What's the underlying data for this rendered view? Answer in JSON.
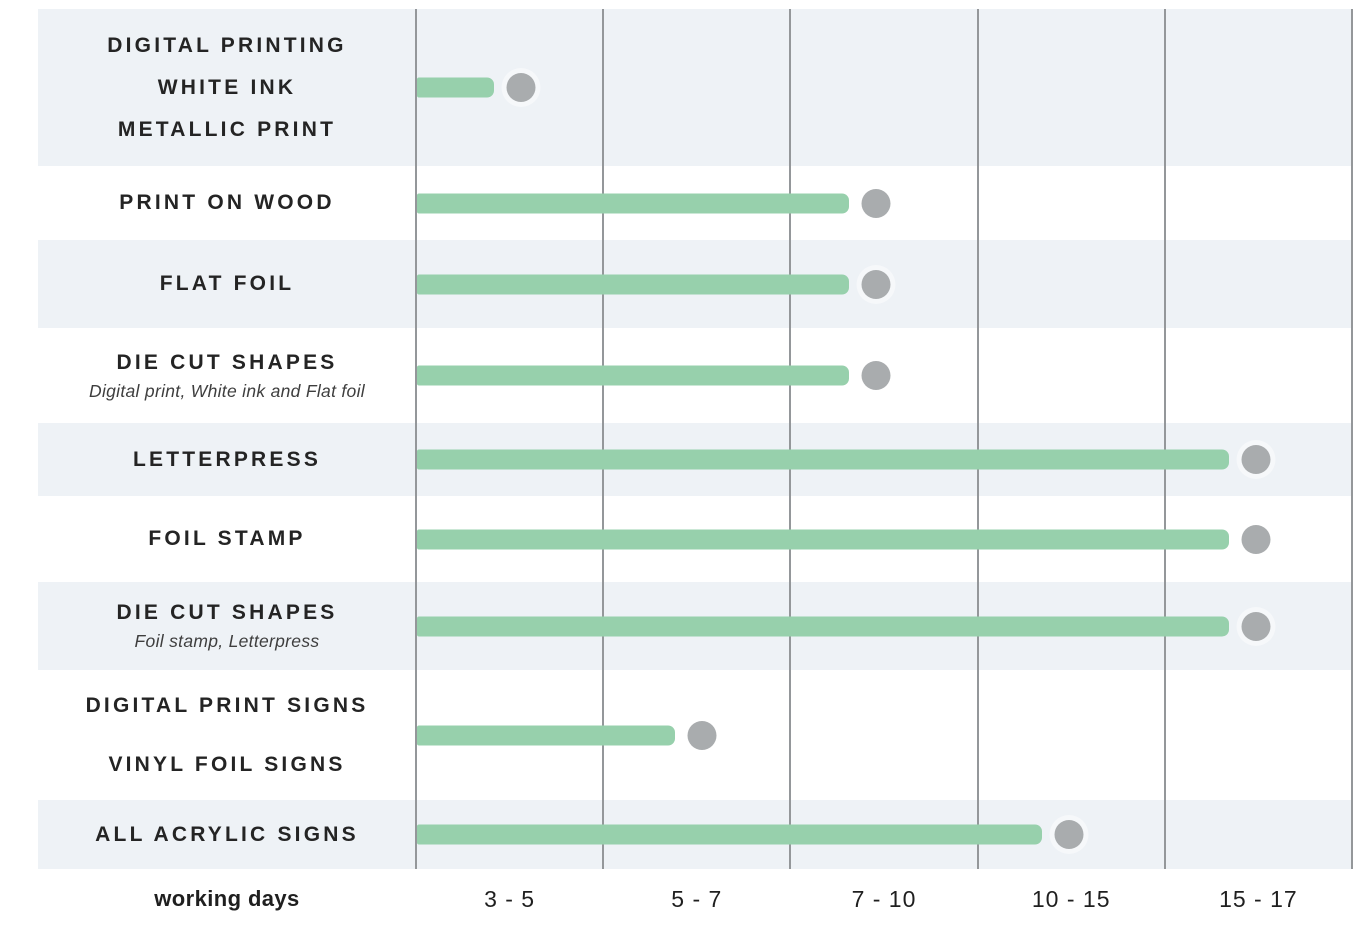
{
  "chart_data": {
    "type": "bar",
    "orientation": "horizontal",
    "xlabel": "working days",
    "columns": [
      "3 - 5",
      "5 - 7",
      "7 - 10",
      "10 - 15",
      "15 - 17"
    ],
    "axis_units_range": [
      0,
      5
    ],
    "grid": true,
    "rows": [
      {
        "labels": [
          "DIGITAL PRINTING",
          "WHITE INK",
          "METALLIC PRINT"
        ],
        "sublabel": "",
        "days": "3 - 5",
        "column": 1,
        "units": 0.41,
        "shade": "light"
      },
      {
        "labels": [
          "PRINT ON WOOD"
        ],
        "sublabel": "",
        "days": "7 - 10",
        "column": 3,
        "units": 2.31,
        "shade": "white"
      },
      {
        "labels": [
          "FLAT FOIL"
        ],
        "sublabel": "",
        "days": "7 - 10",
        "column": 3,
        "units": 2.31,
        "shade": "light"
      },
      {
        "labels": [
          "DIE CUT SHAPES"
        ],
        "sublabel": "Digital print, White ink and Flat foil",
        "days": "7 - 10",
        "column": 3,
        "units": 2.31,
        "shade": "white"
      },
      {
        "labels": [
          "LETTERPRESS"
        ],
        "sublabel": "",
        "days": "15 - 17",
        "column": 5,
        "units": 4.34,
        "shade": "light"
      },
      {
        "labels": [
          "FOIL STAMP"
        ],
        "sublabel": "",
        "days": "15 - 17",
        "column": 5,
        "units": 4.34,
        "shade": "white"
      },
      {
        "labels": [
          "DIE CUT SHAPES"
        ],
        "sublabel": "Foil stamp, Letterpress",
        "days": "15 - 17",
        "column": 5,
        "units": 4.34,
        "shade": "light"
      },
      {
        "labels": [
          "DIGITAL PRINT SIGNS",
          "VINYL FOIL SIGNS"
        ],
        "sublabel": "",
        "days": "5 - 7",
        "column": 2,
        "units": 1.38,
        "shade": "white"
      },
      {
        "labels": [
          "ALL ACRYLIC SIGNS"
        ],
        "sublabel": "",
        "days": "10 - 15",
        "column": 4,
        "units": 3.34,
        "shade": "light"
      }
    ],
    "colors": {
      "bar": "#97d0ac",
      "dot": "#a9acae",
      "band": "#eef2f6",
      "gridline": "#94979a",
      "label_text": "#242424"
    }
  }
}
